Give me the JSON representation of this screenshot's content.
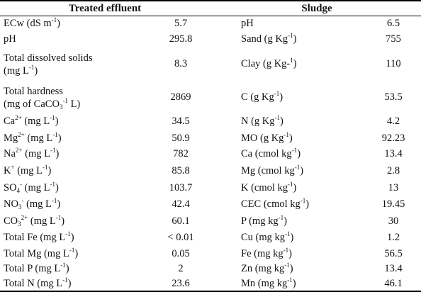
{
  "headers": {
    "left": "Treated effluent",
    "right": "Sludge"
  },
  "rows": [
    {
      "l": {
        "pre": "ECw (dS m",
        "sup": "-1",
        "post": ")"
      },
      "lv": "5.7",
      "r": {
        "pre": "pH"
      },
      "rv": "6.5"
    },
    {
      "l": {
        "pre": "pH"
      },
      "lv": "295.8",
      "r": {
        "pre": "Sand (g Kg",
        "sup": "-1",
        "post": ")"
      },
      "rv": "755"
    },
    {
      "l": {
        "line1": "Total dissolved solids",
        "pre": "(mg L",
        "sup": "-1",
        "post": ")"
      },
      "lv": "8.3",
      "r": {
        "pre": "Clay (g Kg-",
        "sup": "1",
        "post": ")"
      },
      "rv": "110"
    },
    {
      "l": {
        "line1": "Total hardness",
        "pre": "(mg of CaCO",
        "sub": "3",
        "mid": " L",
        "sup": "-1",
        "post": ")"
      },
      "lv": "2869",
      "r": {
        "pre": "C (g Kg",
        "sup": "-1",
        "post": ")"
      },
      "rv": "53.5"
    },
    {
      "l": {
        "pre": "Ca",
        "sup": "2+",
        "post": " (mg L",
        "sup2": "-1",
        "post2": ")"
      },
      "lv": "34.5",
      "r": {
        "pre": "N (g Kg",
        "sup": "-1",
        "post": ")"
      },
      "rv": "4.2"
    },
    {
      "l": {
        "pre": "Mg",
        "sup": "2+",
        "post": " (mg L",
        "sup2": "-1",
        "post2": ")"
      },
      "lv": "50.9",
      "r": {
        "pre": "MO (g Kg",
        "sup": "-1",
        "post": ")"
      },
      "rv": "92.23"
    },
    {
      "l": {
        "pre": "Na",
        "sup": "2+",
        "post": " (mg L",
        "sup2": "-1",
        "post2": ")"
      },
      "lv": "782",
      "r": {
        "pre": "Ca (cmol kg",
        "sup": "-1",
        "post": ")"
      },
      "rv": "13.4"
    },
    {
      "l": {
        "pre": "K",
        "sup": "+",
        "post": " (mg L",
        "sup2": "-1",
        "post2": ")"
      },
      "lv": "85.8",
      "r": {
        "pre": "Mg (cmol kg",
        "sup": "-1",
        "post": ")"
      },
      "rv": "2.8"
    },
    {
      "l": {
        "pre": "SO",
        "sub": "4",
        "sup": "-",
        "post": " (mg L",
        "sup2": "-1",
        "post2": ")"
      },
      "lv": "103.7",
      "r": {
        "pre": "K (cmol kg",
        "sup": "-1",
        "post": ")"
      },
      "rv": "13"
    },
    {
      "l": {
        "pre": "NO",
        "sub": "3",
        "sup": "-",
        "post": " (mg L",
        "sup2": "-1",
        "post2": ")"
      },
      "lv": "42.4",
      "r": {
        "pre": "CEC (cmol kg",
        "sup": "-1",
        "post": ")"
      },
      "rv": "19.45"
    },
    {
      "l": {
        "pre": "CO",
        "sub": "3",
        "sup": "2+",
        "post": " (mg L",
        "sup2": "-1",
        "post2": ")"
      },
      "lv": "60.1",
      "r": {
        "pre": "P (mg kg",
        "sup": "-1",
        "post": ")"
      },
      "rv": "30"
    },
    {
      "l": {
        "pre": "Total Fe (mg L",
        "sup": "-1",
        "post": ")"
      },
      "lv": "< 0.01",
      "r": {
        "pre": "Cu (mg kg",
        "sup": "-1",
        "post": ")"
      },
      "rv": "1.2"
    },
    {
      "l": {
        "pre": "Total Mg (mg L",
        "sup": "-1",
        "post": ")"
      },
      "lv": "0.05",
      "r": {
        "pre": "Fe (mg kg",
        "sup": "-1",
        "post": ")"
      },
      "rv": "56.5"
    },
    {
      "l": {
        "pre": "Total P (mg L",
        "sup": "-1",
        "post": ")"
      },
      "lv": "2",
      "r": {
        "pre": "Zn (mg kg",
        "sup": "-1",
        "post": ")"
      },
      "rv": "13.4"
    },
    {
      "l": {
        "pre": "Total N (mg L",
        "sup": "-1",
        "post": ")"
      },
      "lv": "23.6",
      "r": {
        "pre": "Mn (mg kg",
        "sup": "-1",
        "post": ")"
      },
      "rv": "46.1"
    }
  ]
}
